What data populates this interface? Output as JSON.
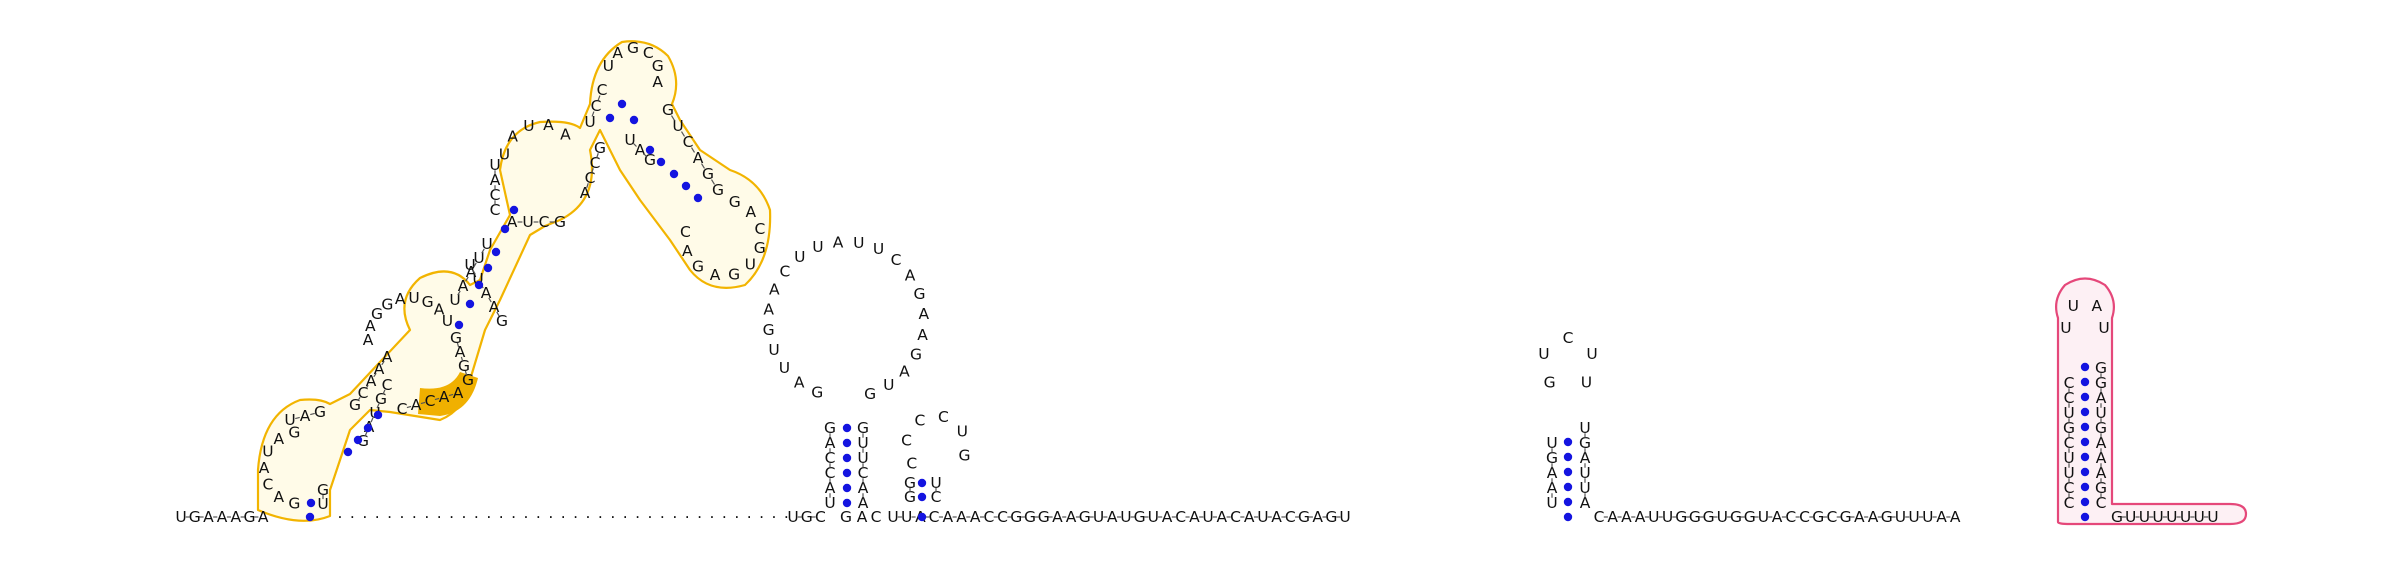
{
  "colors": {
    "pair_dot": "#1414e0",
    "highlight_orange_stroke": "#f2b400",
    "highlight_orange_fill": "#fffbe8",
    "highlight_orange_solid": "#f0b000",
    "highlight_pink_stroke": "#e5487a",
    "highlight_pink_fill": "#fdf0f4",
    "backbone": "#555555",
    "text": "#111111"
  },
  "sequence": {
    "five_prime_leader": "UGAAAGA",
    "domain1_left_strand": "AGCAUAAGGAAAAUUAAUCCC",
    "domain1_hairpin_loop": "UAGCGAUG",
    "domain1_right_strand": "GUAGGCGAGCACUGUCAGG",
    "domain1_inner_loop": "CGUAAUUGGAACCAAACAGUCUGAU",
    "gap_region": ".....................................",
    "linker1": "UGC",
    "hairpin2_stem_5": "UACCAG",
    "hairpin2_loop": "GAUUGAACUUAUUCAGAAGAUG",
    "hairpin2_stem_3": "GUUCAA",
    "hairpin3": "GACCCCUGCGU",
    "linker2": "UUACAAACCGGGAAGUAUGUACAUACAUACGAGU",
    "hairpin4_stem_5": "UAAGU",
    "hairpin4_loop": "GUCUU",
    "hairpin4_stem_3": "UGAUUA",
    "linker3": "CAAAUUGGGUGGUACCGCGAAGUUUAA",
    "terminator_stem_5": "CCUUCGUCC",
    "terminator_loop": "UUAU",
    "terminator_stem_3": "GGAUGAAAGC",
    "three_prime_tail": "GUUUUUUU"
  }
}
